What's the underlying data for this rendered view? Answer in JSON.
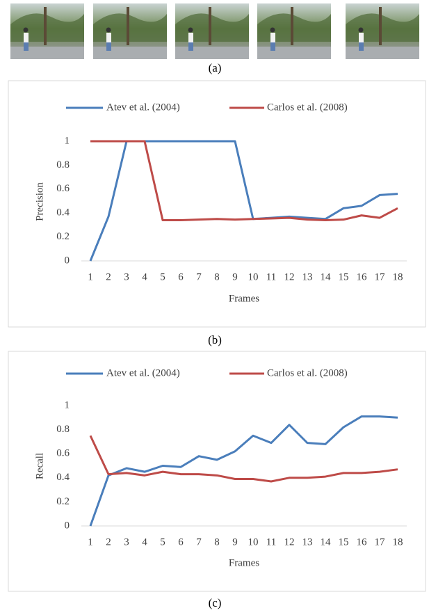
{
  "captions": [
    "(a)",
    "(b)",
    "(c)"
  ],
  "chart_data": [
    {
      "type": "line",
      "y_label": "Precision",
      "x_label": "Frames",
      "categories": [
        "1",
        "2",
        "3",
        "4",
        "5",
        "6",
        "7",
        "8",
        "9",
        "10",
        "11",
        "12",
        "13",
        "14",
        "15",
        "16",
        "17",
        "18"
      ],
      "ylim": [
        0,
        1
      ],
      "yticks": [
        0,
        0.2,
        0.4,
        0.6,
        0.8,
        1
      ],
      "series": [
        {
          "name": "Atev et al. (2004)",
          "color": "#4a7ebb",
          "values": [
            0,
            0.37,
            1,
            1,
            1,
            1,
            1,
            1,
            1,
            0.35,
            0.36,
            0.37,
            0.36,
            0.35,
            0.44,
            0.46,
            0.55,
            0.56
          ]
        },
        {
          "name": "Carlos et al. (2008)",
          "color": "#be4b48",
          "values": [
            1,
            1,
            1,
            1,
            0.34,
            0.34,
            0.345,
            0.35,
            0.345,
            0.35,
            0.355,
            0.36,
            0.345,
            0.34,
            0.345,
            0.38,
            0.36,
            0.44
          ]
        }
      ]
    },
    {
      "type": "line",
      "y_label": "Recall",
      "x_label": "Frames",
      "categories": [
        "1",
        "2",
        "3",
        "4",
        "5",
        "6",
        "7",
        "8",
        "9",
        "10",
        "11",
        "12",
        "13",
        "14",
        "15",
        "16",
        "17",
        "18"
      ],
      "ylim": [
        0,
        1
      ],
      "yticks": [
        0,
        0.2,
        0.4,
        0.6,
        0.8,
        1
      ],
      "series": [
        {
          "name": "Atev et al. (2004)",
          "color": "#4a7ebb",
          "values": [
            0,
            0.42,
            0.48,
            0.45,
            0.5,
            0.49,
            0.58,
            0.55,
            0.62,
            0.75,
            0.69,
            0.84,
            0.69,
            0.68,
            0.82,
            0.91,
            0.91,
            0.9
          ]
        },
        {
          "name": "Carlos et al. (2008)",
          "color": "#be4b48",
          "values": [
            0.75,
            0.43,
            0.44,
            0.42,
            0.45,
            0.43,
            0.43,
            0.42,
            0.39,
            0.39,
            0.37,
            0.4,
            0.4,
            0.41,
            0.44,
            0.44,
            0.45,
            0.47
          ]
        }
      ]
    }
  ]
}
